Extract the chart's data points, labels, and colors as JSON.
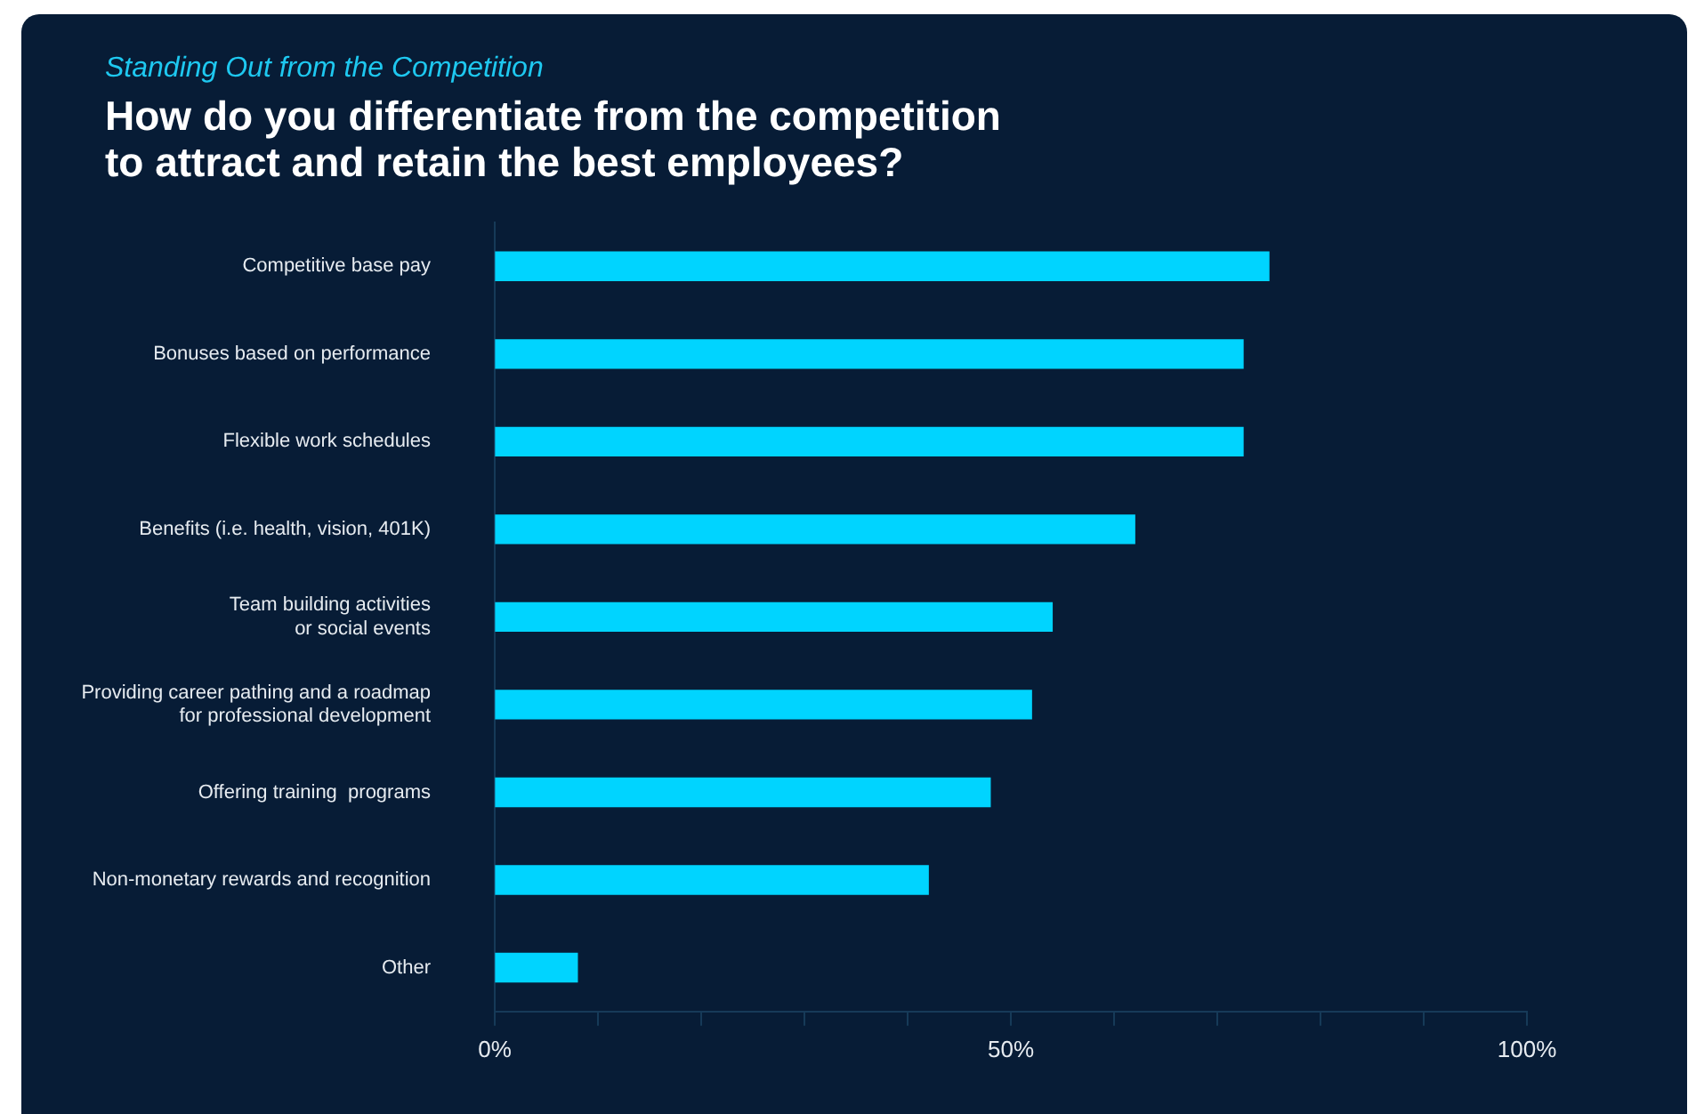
{
  "chart_data": {
    "type": "bar",
    "orientation": "horizontal",
    "subtitle": "Standing Out from the Competition",
    "title": "How do you differentiate from the competition\nto attract and retain the best employees?",
    "categories": [
      "Competitive base pay",
      "Bonuses based on performance",
      "Flexible work schedules",
      "Benefits (i.e. health, vision, 401K)",
      "Team building activities\nor social events",
      "Providing career pathing and a roadmap\nfor professional development",
      "Offering training  programs",
      "Non-monetary rewards and recognition",
      "Other"
    ],
    "values": [
      75,
      72.5,
      72.5,
      62,
      54,
      52,
      48,
      42,
      8
    ],
    "color": "#00d4ff",
    "xlim": [
      0,
      100
    ],
    "xticks": [
      {
        "value": 0,
        "label": "0%"
      },
      {
        "value": 10,
        "label": null
      },
      {
        "value": 20,
        "label": null
      },
      {
        "value": 30,
        "label": null
      },
      {
        "value": 40,
        "label": null
      },
      {
        "value": 50,
        "label": "50%"
      },
      {
        "value": 60,
        "label": null
      },
      {
        "value": 70,
        "label": null
      },
      {
        "value": 80,
        "label": null
      },
      {
        "value": 90,
        "label": null
      },
      {
        "value": 100,
        "label": "100%"
      }
    ],
    "grid": false,
    "legend": false
  }
}
